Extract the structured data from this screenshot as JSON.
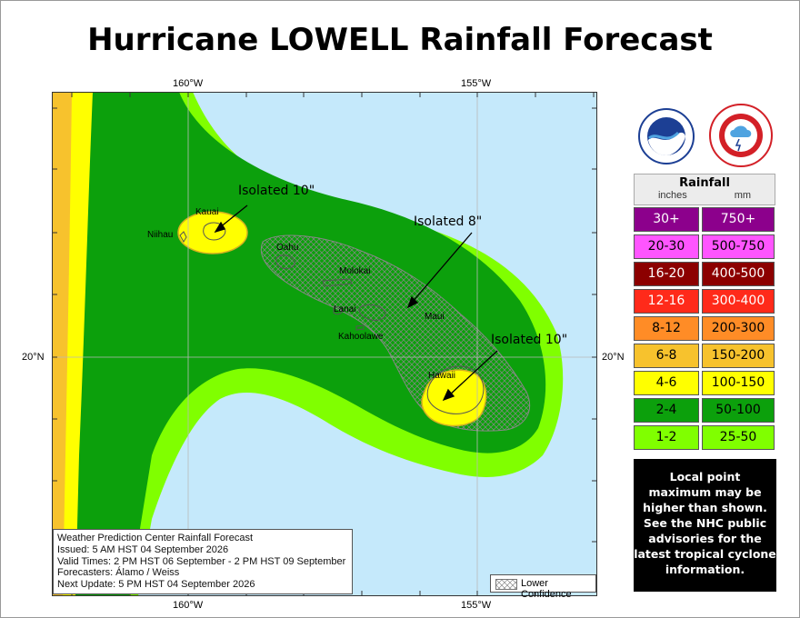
{
  "title": "Hurricane LOWELL Rainfall Forecast",
  "axes": {
    "lon_labels": [
      "160°W",
      "155°W"
    ],
    "lat_labels": [
      "20°N",
      "20°N"
    ]
  },
  "islands": [
    "Niihau",
    "Kauai",
    "Oahu",
    "Molokai",
    "Lanai",
    "Maui",
    "Kahoolawe",
    "Hawaii"
  ],
  "annotations": [
    "Isolated 10\"",
    "Isolated 8\"",
    "Isolated 10\""
  ],
  "legend": {
    "title": "Rainfall",
    "unit_in": "inches",
    "unit_mm": "mm",
    "rows": [
      {
        "inches": "30+",
        "mm": "750+",
        "color": "#8c008c",
        "text_color": "#ffffff"
      },
      {
        "inches": "20-30",
        "mm": "500-750",
        "color": "#ff55ff",
        "text_color": "#000000"
      },
      {
        "inches": "16-20",
        "mm": "400-500",
        "color": "#8c0000",
        "text_color": "#ffffff"
      },
      {
        "inches": "12-16",
        "mm": "300-400",
        "color": "#ff2a1a",
        "text_color": "#ffffff"
      },
      {
        "inches": "8-12",
        "mm": "200-300",
        "color": "#ff8c26",
        "text_color": "#000000"
      },
      {
        "inches": "6-8",
        "mm": "150-200",
        "color": "#f7c22d",
        "text_color": "#000000"
      },
      {
        "inches": "4-6",
        "mm": "100-150",
        "color": "#ffff00",
        "text_color": "#000000"
      },
      {
        "inches": "2-4",
        "mm": "50-100",
        "color": "#0ca00c",
        "text_color": "#000000"
      },
      {
        "inches": "1-2",
        "mm": "25-50",
        "color": "#80ff00",
        "text_color": "#000000"
      }
    ]
  },
  "note": [
    "Local point",
    "maximum may be",
    "higher than shown.",
    "See the NHC public",
    "advisories for the",
    "latest tropical cyclone",
    "information."
  ],
  "info": {
    "line1": "Weather Prediction Center Rainfall Forecast",
    "line2": "Issued: 5 AM HST 04 September 2026",
    "line3": "Valid Times: 2 PM HST 06 September - 2 PM HST 09 September",
    "line4": "Forecasters: Álamo / Weiss",
    "line5": "Next Update: 5 PM HST 04 September 2026"
  },
  "lower_confidence": "Lower Confidence",
  "colors": {
    "ocean": "#c5e9fb",
    "light_green": "#80ff00",
    "green": "#0ca00c",
    "yellow": "#ffff00",
    "gold": "#f7c22d"
  }
}
